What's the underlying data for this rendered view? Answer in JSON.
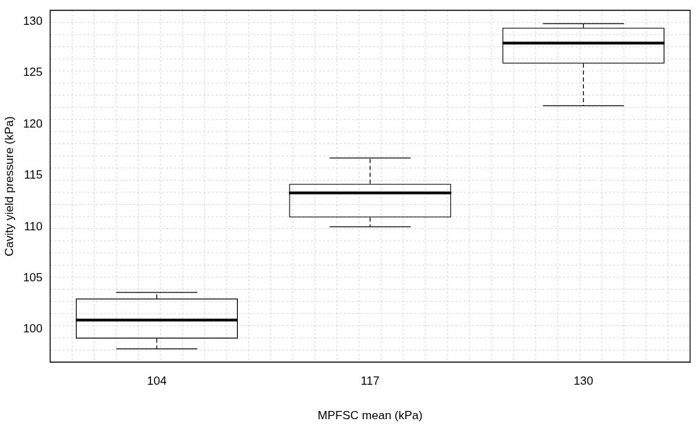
{
  "chart_data": {
    "type": "box",
    "xlabel": "MPFSC mean (kPa)",
    "ylabel": "Cavity yield pressure (kPa)",
    "categories": [
      "104",
      "117",
      "130"
    ],
    "boxes": [
      {
        "low": 98.1,
        "q1": 99.1,
        "median": 100.9,
        "q3": 103.0,
        "high": 103.6
      },
      {
        "low": 110.0,
        "q1": 110.9,
        "median": 113.3,
        "q3": 114.2,
        "high": 116.7
      },
      {
        "low": 121.8,
        "q1": 125.9,
        "median": 127.9,
        "q3": 129.4,
        "high": 129.8
      }
    ],
    "color": "#000000",
    "ylim": [
      96.8,
      131.1
    ],
    "yticks": [
      100,
      105,
      110,
      115,
      120,
      125,
      130
    ],
    "grid": true
  }
}
